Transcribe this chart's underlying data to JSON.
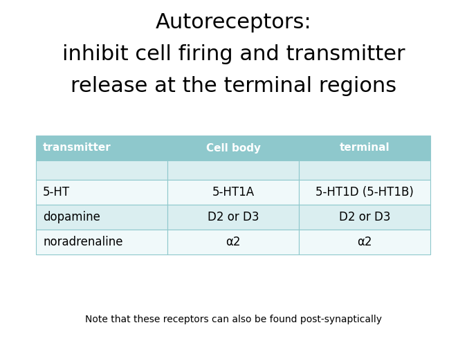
{
  "title_line1": "Autoreceptors:",
  "title_line2": "inhibit cell firing and transmitter",
  "title_line3": "release at the terminal regions",
  "title_fontsize": 22,
  "title_color": "#000000",
  "header_bg_color": "#8ec8cc",
  "header_text_color": "#ffffff",
  "table_border_color": "#8ec8cc",
  "headers": [
    "transmitter",
    "Cell body",
    "terminal"
  ],
  "rows": [
    [
      "",
      "",
      ""
    ],
    [
      "5-HT",
      "5-HT1A",
      "5-HT1D (5-HT1B)"
    ],
    [
      "dopamine",
      "D2 or D3",
      "D2 or D3"
    ],
    [
      "noradrenaline",
      "α2",
      "α2"
    ]
  ],
  "row_colors": [
    "#daeef0",
    "#f0f9fa",
    "#daeef0",
    "#f0f9fa"
  ],
  "footnote": "Note that these receptors can also be found post-synaptically",
  "footnote_fontsize": 10,
  "footnote_color": "#000000",
  "header_fontsize": 11,
  "row_fontsize": 12,
  "data_text_color": "#000000",
  "background_color": "#ffffff"
}
